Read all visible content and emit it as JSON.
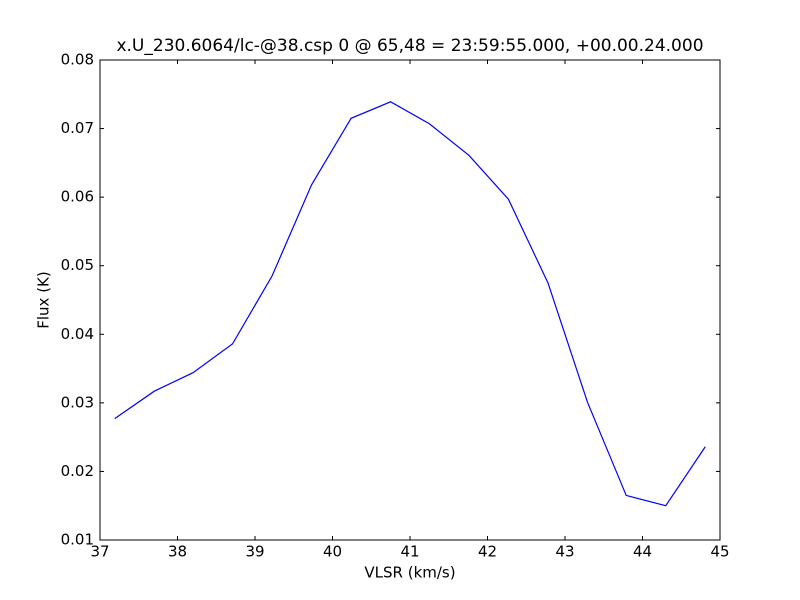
{
  "chart_data": {
    "type": "line",
    "title": "x.U_230.6064/lc-@38.csp 0 @ 65,48 = 23:59:55.000, +00.00.24.000",
    "x_label": "VLSR (km/s)",
    "y_label": "Flux (K)",
    "x": [
      37.19,
      37.7,
      38.2,
      38.71,
      39.22,
      39.73,
      40.24,
      40.75,
      41.25,
      41.76,
      42.27,
      42.78,
      43.29,
      43.79,
      44.3,
      44.81
    ],
    "series": [
      {
        "name": "Flux",
        "color": "#0000ff",
        "values": [
          0.0277,
          0.0317,
          0.0344,
          0.0386,
          0.0485,
          0.0618,
          0.0715,
          0.0739,
          0.0707,
          0.0661,
          0.0597,
          0.0475,
          0.0301,
          0.0165,
          0.015,
          0.0236
        ]
      }
    ],
    "xlim": [
      37,
      45
    ],
    "xticks": [
      37,
      38,
      39,
      40,
      41,
      42,
      43,
      44,
      45
    ],
    "ylim": [
      0.01,
      0.08
    ],
    "yticks": [
      0.01,
      0.02,
      0.03,
      0.04,
      0.05,
      0.06,
      0.07,
      0.08
    ],
    "grid": false
  }
}
